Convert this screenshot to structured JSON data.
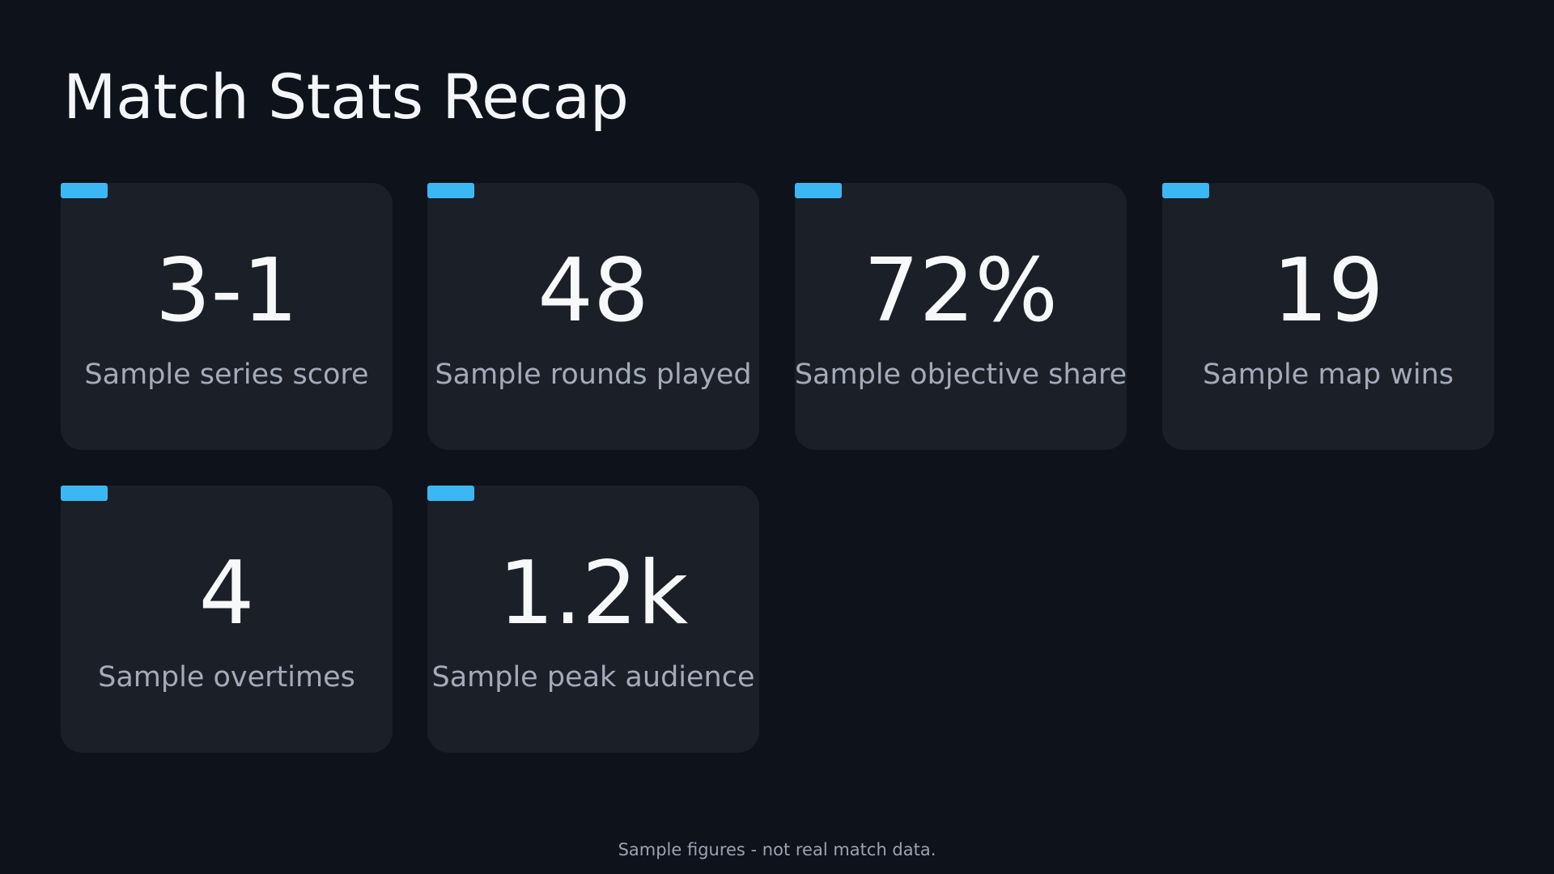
{
  "title": "Match Stats Recap",
  "accent_color": "#3bb8f3",
  "stats": [
    {
      "value": "3-1",
      "label": "Sample series score"
    },
    {
      "value": "48",
      "label": "Sample rounds played"
    },
    {
      "value": "72%",
      "label": "Sample objective share"
    },
    {
      "value": "19",
      "label": "Sample map wins"
    },
    {
      "value": "4",
      "label": "Sample overtimes"
    },
    {
      "value": "1.2k",
      "label": "Sample peak audience"
    }
  ],
  "footnote": "Sample figures - not real match data."
}
